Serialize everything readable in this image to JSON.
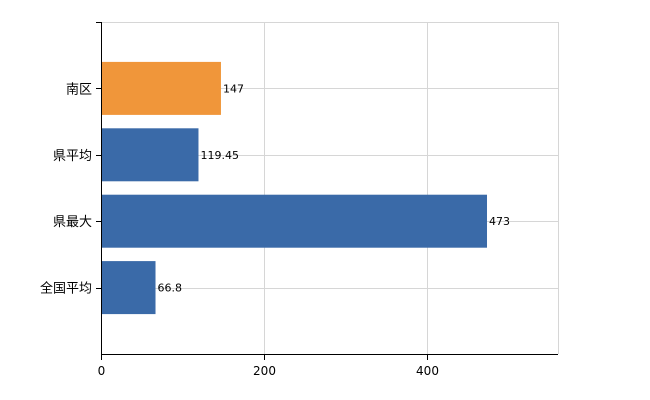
{
  "chart_data": {
    "type": "bar",
    "orientation": "horizontal",
    "categories": [
      "南区",
      "県平均",
      "県最大",
      "全国平均"
    ],
    "values": [
      147,
      119.45,
      473,
      66.8
    ],
    "value_labels": [
      "147",
      "119.45",
      "473",
      "66.8"
    ],
    "colors": [
      "#f0963a",
      "#3a6aa8",
      "#3a6aa8",
      "#3a6aa8"
    ],
    "title": "",
    "xlabel": "",
    "ylabel": "",
    "xlim": [
      0,
      560
    ],
    "xticks": [
      0,
      200,
      400
    ],
    "grid": true,
    "legend": "none"
  }
}
